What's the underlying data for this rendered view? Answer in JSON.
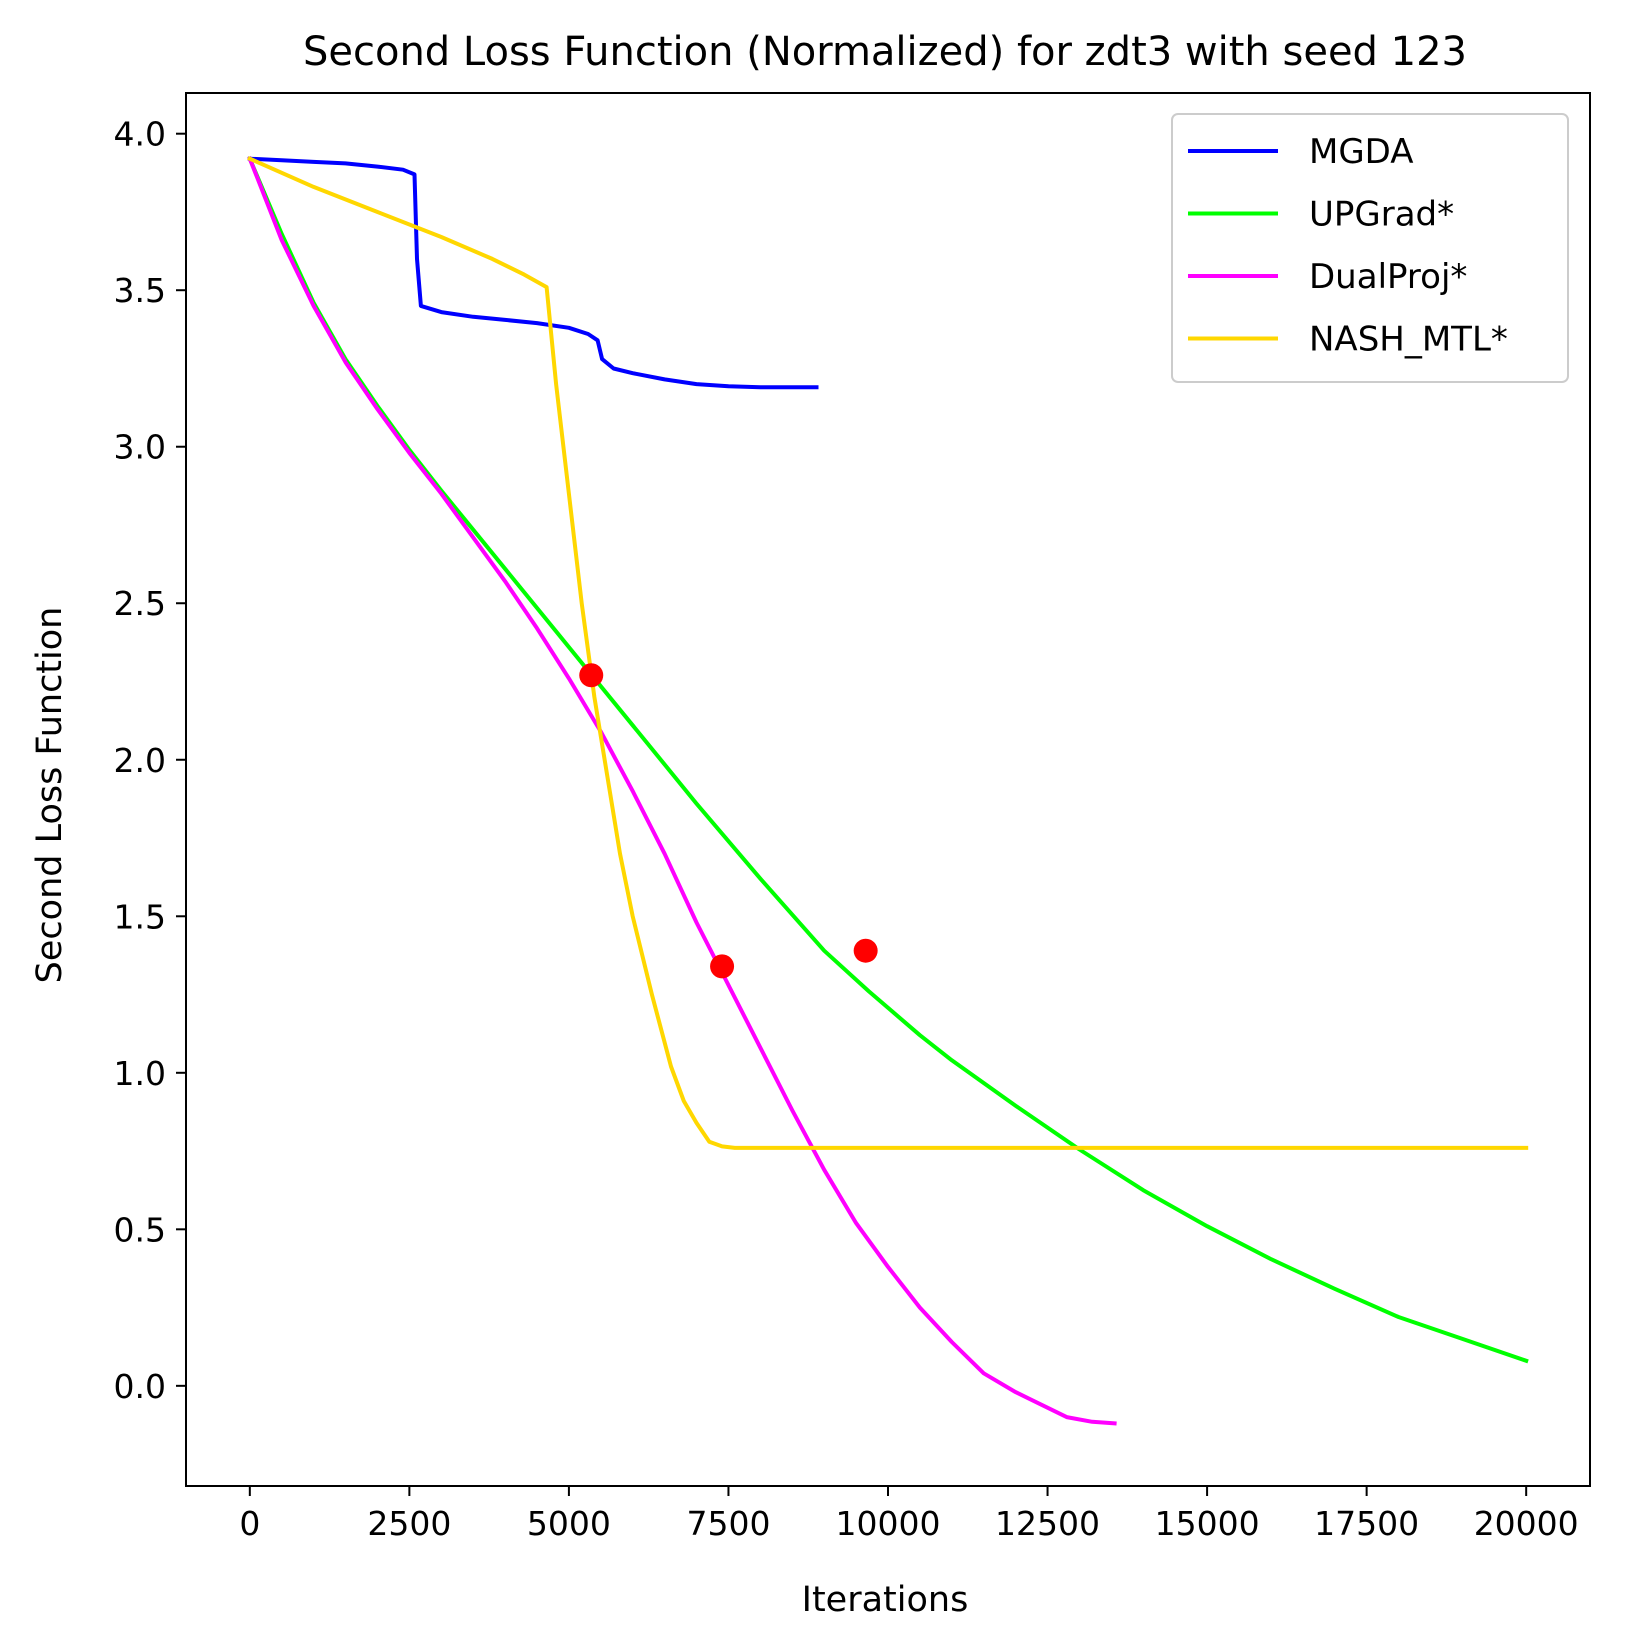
{
  "chart_data": {
    "type": "line",
    "title": "Second Loss Function (Normalized) for zdt3 with seed 123",
    "xlabel": "Iterations",
    "ylabel": "Second Loss Function",
    "xlim": [
      -1000,
      21000
    ],
    "ylim": [
      -0.32,
      4.13
    ],
    "xticks": [
      0,
      2500,
      5000,
      7500,
      10000,
      12500,
      15000,
      17500,
      20000
    ],
    "xtick_labels": [
      "0",
      "2500",
      "5000",
      "7500",
      "10000",
      "12500",
      "15000",
      "17500",
      "20000"
    ],
    "yticks": [
      0.0,
      0.5,
      1.0,
      1.5,
      2.0,
      2.5,
      3.0,
      3.5,
      4.0
    ],
    "ytick_labels": [
      "0.0",
      "0.5",
      "1.0",
      "1.5",
      "2.0",
      "2.5",
      "3.0",
      "3.5",
      "4.0"
    ],
    "grid": false,
    "legend_position": "top-right",
    "series": [
      {
        "name": "MGDA",
        "color": "#0000ff",
        "points": [
          [
            0,
            3.92
          ],
          [
            500,
            3.915
          ],
          [
            1000,
            3.91
          ],
          [
            1500,
            3.905
          ],
          [
            2000,
            3.895
          ],
          [
            2400,
            3.885
          ],
          [
            2580,
            3.87
          ],
          [
            2620,
            3.6
          ],
          [
            2680,
            3.45
          ],
          [
            3000,
            3.43
          ],
          [
            3500,
            3.415
          ],
          [
            4000,
            3.405
          ],
          [
            4500,
            3.395
          ],
          [
            5000,
            3.38
          ],
          [
            5300,
            3.36
          ],
          [
            5450,
            3.34
          ],
          [
            5520,
            3.28
          ],
          [
            5700,
            3.25
          ],
          [
            6000,
            3.235
          ],
          [
            6500,
            3.215
          ],
          [
            7000,
            3.2
          ],
          [
            7500,
            3.193
          ],
          [
            8000,
            3.19
          ],
          [
            8500,
            3.19
          ],
          [
            8880,
            3.19
          ]
        ]
      },
      {
        "name": "UPGrad*",
        "color": "#00ff00",
        "points": [
          [
            0,
            3.92
          ],
          [
            500,
            3.68
          ],
          [
            1000,
            3.46
          ],
          [
            1500,
            3.28
          ],
          [
            2000,
            3.13
          ],
          [
            2500,
            2.99
          ],
          [
            3000,
            2.86
          ],
          [
            4000,
            2.61
          ],
          [
            5000,
            2.36
          ],
          [
            6000,
            2.11
          ],
          [
            7000,
            1.86
          ],
          [
            8000,
            1.62
          ],
          [
            9000,
            1.39
          ],
          [
            9700,
            1.26
          ],
          [
            10500,
            1.12
          ],
          [
            11000,
            1.04
          ],
          [
            12000,
            0.895
          ],
          [
            13000,
            0.755
          ],
          [
            14000,
            0.625
          ],
          [
            15000,
            0.51
          ],
          [
            16000,
            0.405
          ],
          [
            17000,
            0.31
          ],
          [
            18000,
            0.22
          ],
          [
            19000,
            0.15
          ],
          [
            20000,
            0.08
          ]
        ]
      },
      {
        "name": "DualProj*",
        "color": "#ff00ff",
        "points": [
          [
            0,
            3.92
          ],
          [
            500,
            3.66
          ],
          [
            1000,
            3.45
          ],
          [
            1500,
            3.27
          ],
          [
            2000,
            3.12
          ],
          [
            2500,
            2.98
          ],
          [
            3000,
            2.85
          ],
          [
            4000,
            2.57
          ],
          [
            4500,
            2.42
          ],
          [
            5000,
            2.26
          ],
          [
            5500,
            2.09
          ],
          [
            6000,
            1.9
          ],
          [
            6500,
            1.7
          ],
          [
            7000,
            1.48
          ],
          [
            7400,
            1.32
          ],
          [
            8000,
            1.08
          ],
          [
            8500,
            0.88
          ],
          [
            9000,
            0.69
          ],
          [
            9500,
            0.52
          ],
          [
            10000,
            0.38
          ],
          [
            10500,
            0.25
          ],
          [
            11000,
            0.14
          ],
          [
            11500,
            0.04
          ],
          [
            12000,
            -0.02
          ],
          [
            12500,
            -0.07
          ],
          [
            12800,
            -0.1
          ],
          [
            13200,
            -0.115
          ],
          [
            13550,
            -0.12
          ]
        ]
      },
      {
        "name": "NASH_MTL*",
        "color": "#ffd700",
        "points": [
          [
            0,
            3.92
          ],
          [
            1000,
            3.83
          ],
          [
            2000,
            3.75
          ],
          [
            3000,
            3.67
          ],
          [
            3800,
            3.6
          ],
          [
            4300,
            3.55
          ],
          [
            4650,
            3.51
          ],
          [
            4800,
            3.2
          ],
          [
            5000,
            2.85
          ],
          [
            5200,
            2.5
          ],
          [
            5400,
            2.2
          ],
          [
            5600,
            1.95
          ],
          [
            5800,
            1.7
          ],
          [
            6000,
            1.5
          ],
          [
            6300,
            1.25
          ],
          [
            6600,
            1.02
          ],
          [
            6800,
            0.91
          ],
          [
            7000,
            0.84
          ],
          [
            7200,
            0.78
          ],
          [
            7400,
            0.765
          ],
          [
            7600,
            0.76
          ],
          [
            8000,
            0.76
          ],
          [
            10000,
            0.76
          ],
          [
            12000,
            0.76
          ],
          [
            14000,
            0.76
          ],
          [
            16000,
            0.76
          ],
          [
            18000,
            0.76
          ],
          [
            20000,
            0.76
          ]
        ]
      }
    ],
    "markers": {
      "color": "#ff0000",
      "points": [
        [
          5350,
          2.27
        ],
        [
          7400,
          1.34
        ],
        [
          9650,
          1.39
        ]
      ]
    }
  }
}
